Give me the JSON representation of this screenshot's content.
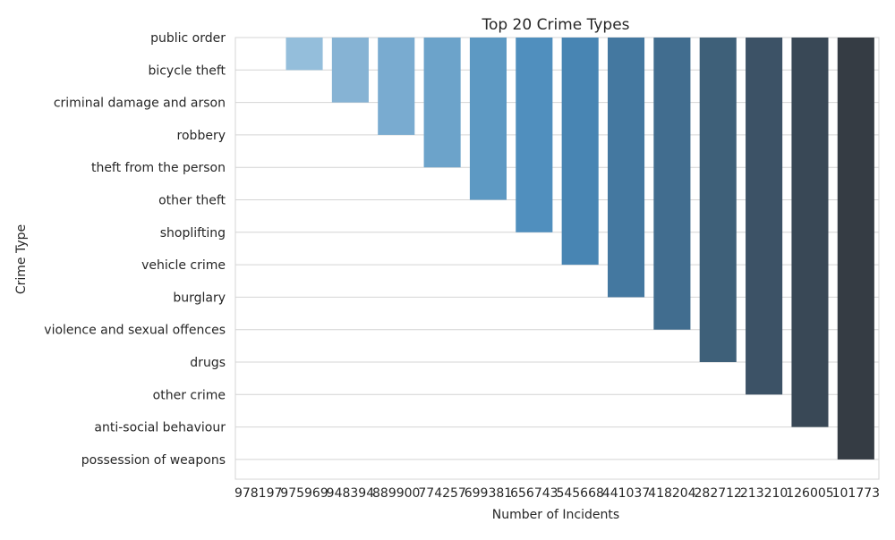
{
  "chart_data": {
    "type": "bar",
    "title": "Top 20 Crime Types",
    "xlabel": "Number of Incidents",
    "ylabel": "Crime Type",
    "grid": true,
    "x_tick_labels": [
      "978197",
      "975969",
      "948394",
      "889900",
      "774257",
      "699381",
      "656743",
      "545668",
      "441037",
      "418204",
      "282712",
      "213210",
      "126005",
      "101773"
    ],
    "y_categories": [
      "public order",
      "bicycle theft",
      "criminal damage and arson",
      "robbery",
      "theft from the person",
      "other theft",
      "shoplifting",
      "vehicle crime",
      "burglary",
      "violence and sexual offences",
      "drugs",
      "other crime",
      "anti-social behaviour",
      "possession of weapons"
    ],
    "bars": [
      {
        "x": "978197",
        "y": "public order",
        "color": "#a1c6e0"
      },
      {
        "x": "975969",
        "y": "bicycle theft",
        "color": "#94bedb"
      },
      {
        "x": "948394",
        "y": "criminal damage and arson",
        "color": "#86b3d4"
      },
      {
        "x": "889900",
        "y": "robbery",
        "color": "#79abd0"
      },
      {
        "x": "774257",
        "y": "theft from the person",
        "color": "#6ca3ca"
      },
      {
        "x": "699381",
        "y": "other theft",
        "color": "#5d99c3"
      },
      {
        "x": "656743",
        "y": "shoplifting",
        "color": "#508fbe"
      },
      {
        "x": "545668",
        "y": "vehicle crime",
        "color": "#4885b3"
      },
      {
        "x": "441037",
        "y": "burglary",
        "color": "#4478a0"
      },
      {
        "x": "418204",
        "y": "violence and sexual offences",
        "color": "#416d8f"
      },
      {
        "x": "282712",
        "y": "drugs",
        "color": "#3e6079"
      },
      {
        "x": "213210",
        "y": "other crime",
        "color": "#3c5266"
      },
      {
        "x": "126005",
        "y": "anti-social behaviour",
        "color": "#394856"
      },
      {
        "x": "101773",
        "y": "possession of weapons",
        "color": "#353c44"
      }
    ]
  }
}
